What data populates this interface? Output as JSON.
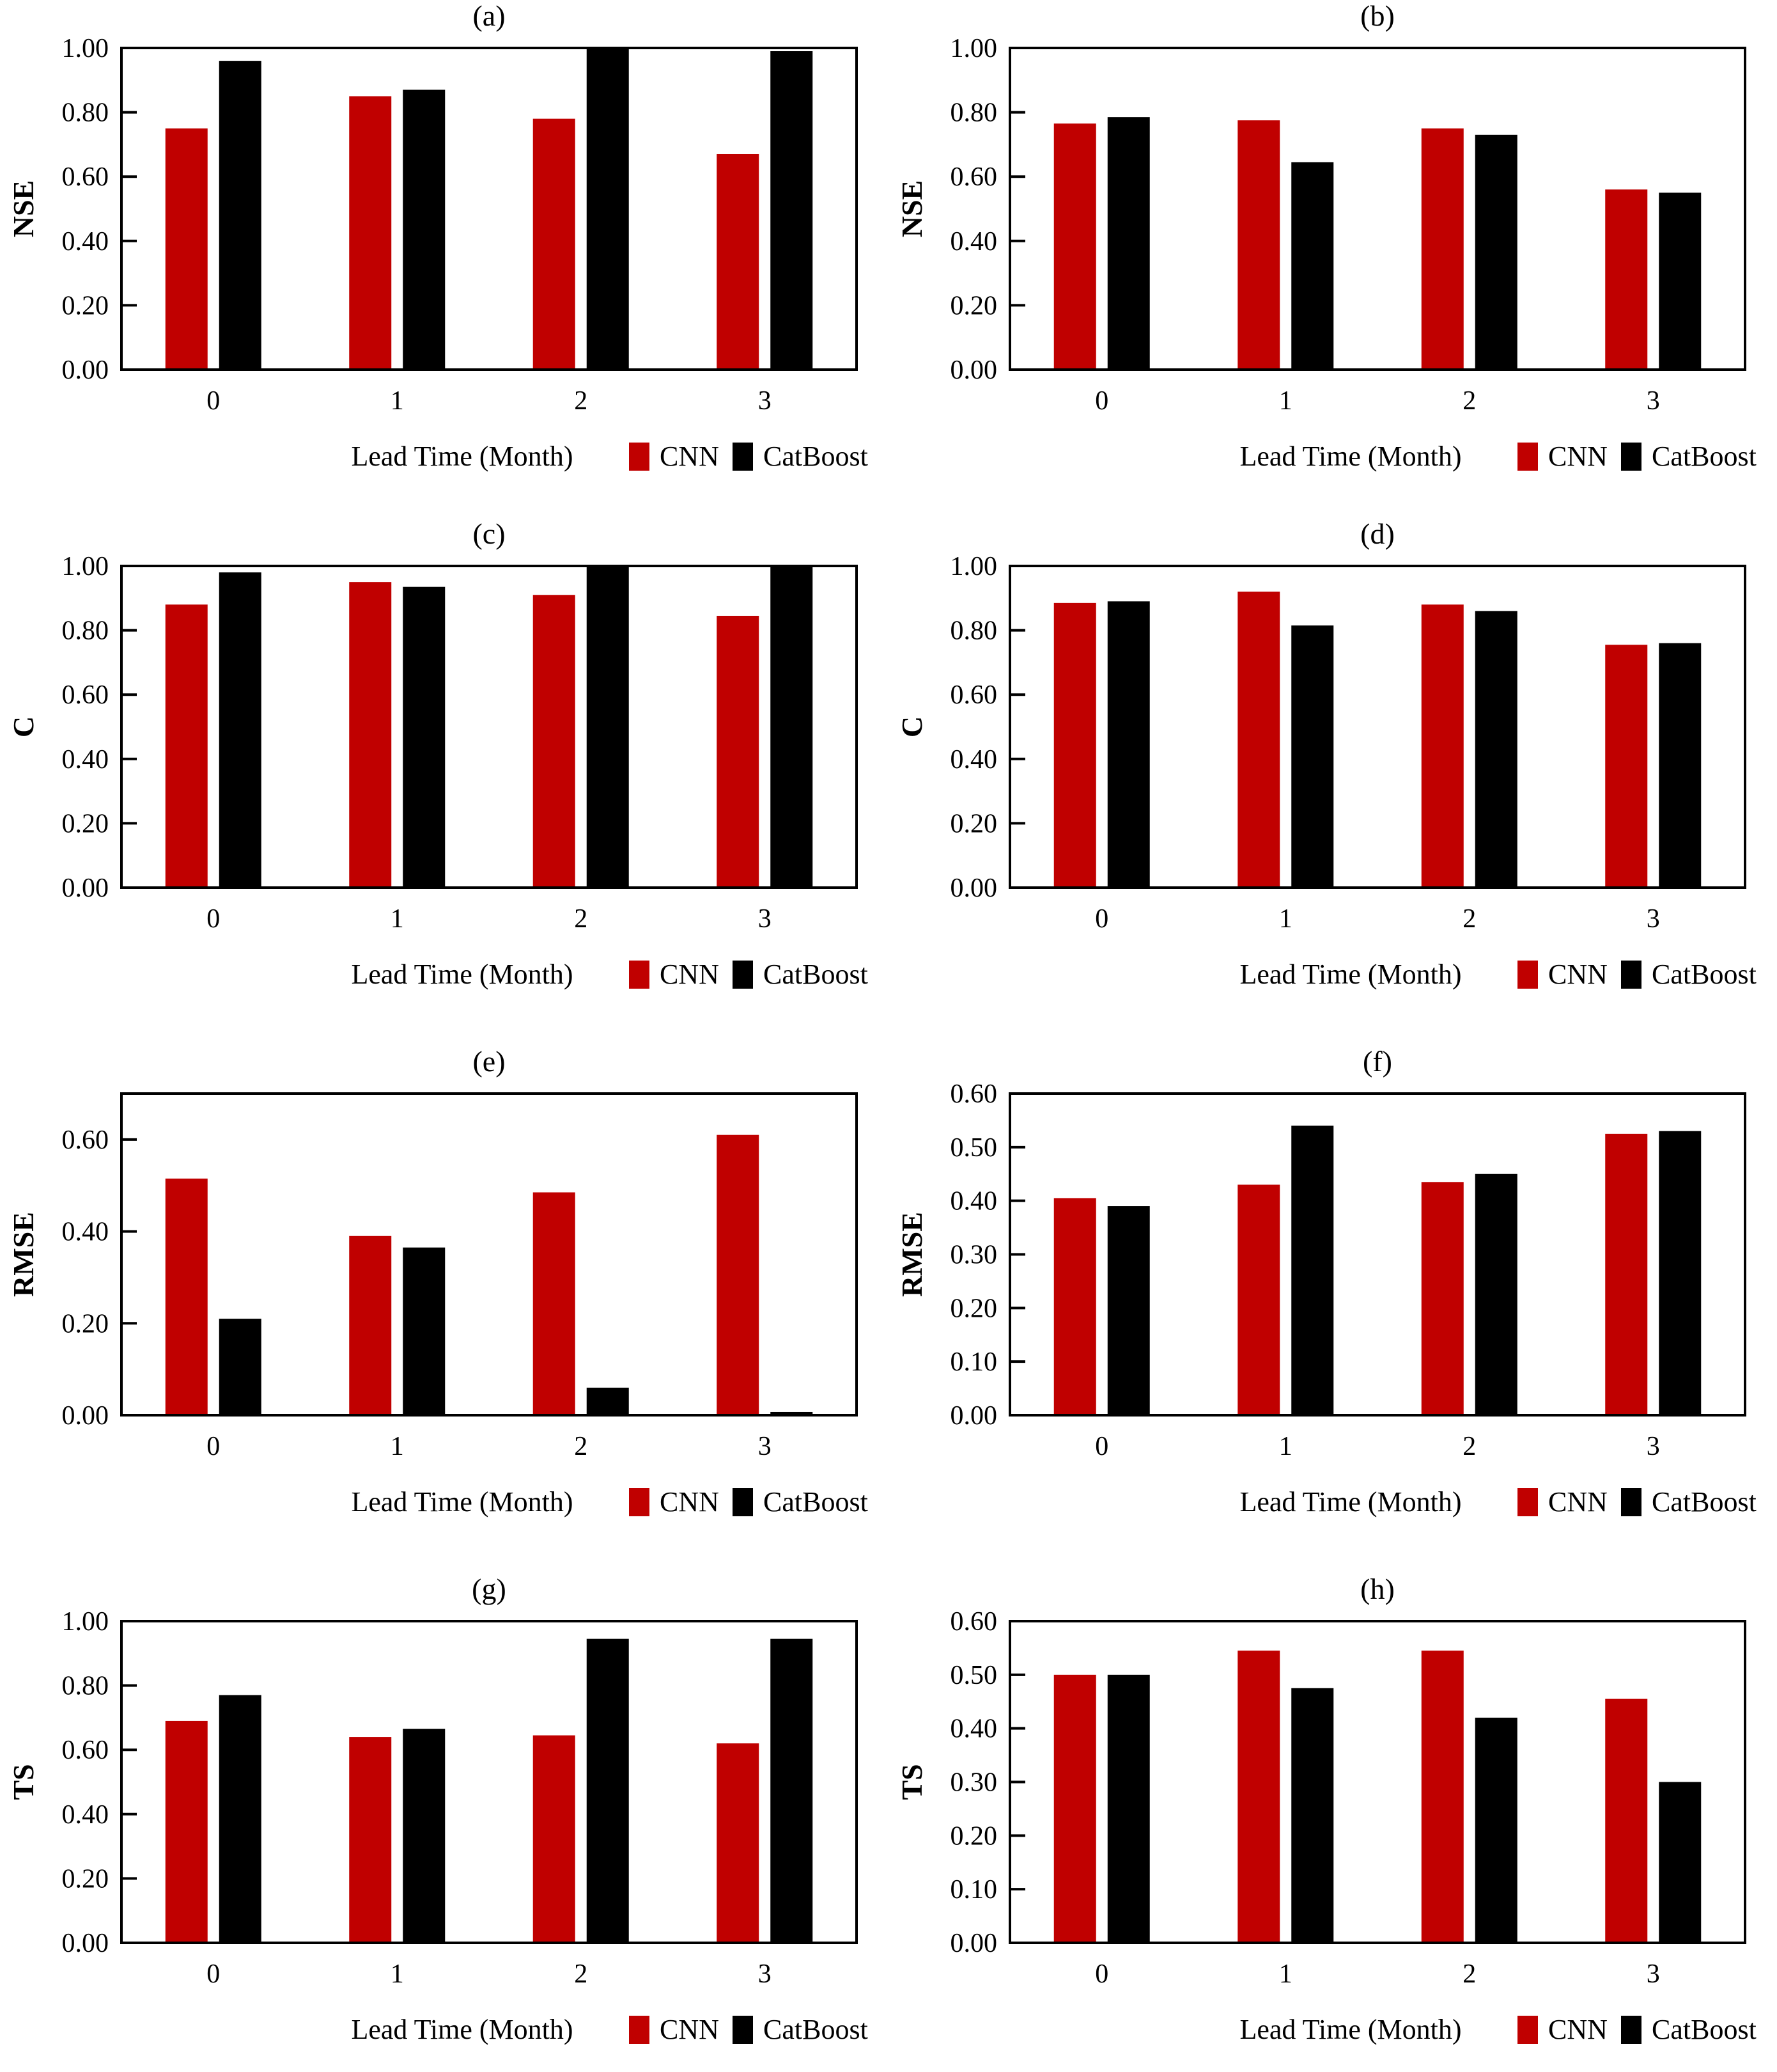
{
  "page": {
    "background": "#ffffff",
    "description_colors": {
      "cnn_red": "#c00000",
      "catboost_black": "#000000",
      "axis": "#000000"
    }
  },
  "shared": {
    "xlabel": "Lead Time (Month)",
    "legend": [
      "CNN",
      "CatBoost"
    ]
  },
  "chart_data": [
    {
      "type": "bar",
      "title": "(a)",
      "ylabel": "NSE",
      "xlabel": "Lead Time (Month)",
      "categories": [
        "0",
        "1",
        "2",
        "3"
      ],
      "series": [
        {
          "name": "CNN",
          "color": "#c00000",
          "values": [
            0.75,
            0.85,
            0.78,
            0.67
          ]
        },
        {
          "name": "CatBoost",
          "color": "#000000",
          "values": [
            0.96,
            0.87,
            1.0,
            0.99
          ]
        }
      ],
      "ylim": [
        0,
        1.0
      ],
      "axis_top": 1.0,
      "yticks": {
        "values": [
          0,
          0.2,
          0.4,
          0.6,
          0.8,
          1.0
        ],
        "labels": [
          "0.00",
          "0.20",
          "0.40",
          "0.60",
          "0.80",
          "1.00"
        ]
      },
      "grid": false,
      "legend_position": "bottom-right"
    },
    {
      "type": "bar",
      "title": "(b)",
      "ylabel": "NSE",
      "xlabel": "Lead Time (Month)",
      "categories": [
        "0",
        "1",
        "2",
        "3"
      ],
      "series": [
        {
          "name": "CNN",
          "color": "#c00000",
          "values": [
            0.765,
            0.775,
            0.75,
            0.56
          ]
        },
        {
          "name": "CatBoost",
          "color": "#000000",
          "values": [
            0.785,
            0.645,
            0.73,
            0.55
          ]
        }
      ],
      "ylim": [
        0,
        1.0
      ],
      "axis_top": 1.0,
      "yticks": {
        "values": [
          0,
          0.2,
          0.4,
          0.6,
          0.8,
          1.0
        ],
        "labels": [
          "0.00",
          "0.20",
          "0.40",
          "0.60",
          "0.80",
          "1.00"
        ]
      },
      "grid": false,
      "legend_position": "bottom-right"
    },
    {
      "type": "bar",
      "title": "(c)",
      "ylabel": "C",
      "xlabel": "Lead Time (Month)",
      "categories": [
        "0",
        "1",
        "2",
        "3"
      ],
      "series": [
        {
          "name": "CNN",
          "color": "#c00000",
          "values": [
            0.88,
            0.95,
            0.91,
            0.845
          ]
        },
        {
          "name": "CatBoost",
          "color": "#000000",
          "values": [
            0.98,
            0.935,
            1.0,
            1.0
          ]
        }
      ],
      "ylim": [
        0,
        1.0
      ],
      "axis_top": 1.0,
      "yticks": {
        "values": [
          0,
          0.2,
          0.4,
          0.6,
          0.8,
          1.0
        ],
        "labels": [
          "0.00",
          "0.20",
          "0.40",
          "0.60",
          "0.80",
          "1.00"
        ]
      },
      "grid": false,
      "legend_position": "bottom-right"
    },
    {
      "type": "bar",
      "title": "(d)",
      "ylabel": "C",
      "xlabel": "Lead Time (Month)",
      "categories": [
        "0",
        "1",
        "2",
        "3"
      ],
      "series": [
        {
          "name": "CNN",
          "color": "#c00000",
          "values": [
            0.885,
            0.92,
            0.88,
            0.755
          ]
        },
        {
          "name": "CatBoost",
          "color": "#000000",
          "values": [
            0.89,
            0.815,
            0.86,
            0.76
          ]
        }
      ],
      "ylim": [
        0,
        1.0
      ],
      "axis_top": 1.0,
      "yticks": {
        "values": [
          0,
          0.2,
          0.4,
          0.6,
          0.8,
          1.0
        ],
        "labels": [
          "0.00",
          "0.20",
          "0.40",
          "0.60",
          "0.80",
          "1.00"
        ]
      },
      "grid": false,
      "legend_position": "bottom-right"
    },
    {
      "type": "bar",
      "title": "(e)",
      "ylabel": "RMSE",
      "xlabel": "Lead Time (Month)",
      "categories": [
        "0",
        "1",
        "2",
        "3"
      ],
      "series": [
        {
          "name": "CNN",
          "color": "#c00000",
          "values": [
            0.515,
            0.39,
            0.485,
            0.61
          ]
        },
        {
          "name": "CatBoost",
          "color": "#000000",
          "values": [
            0.21,
            0.365,
            0.06,
            0.007
          ]
        }
      ],
      "ylim": [
        0,
        0.7
      ],
      "axis_top": 0.7,
      "yticks": {
        "values": [
          0,
          0.2,
          0.4,
          0.6
        ],
        "labels": [
          "0.00",
          "0.20",
          "0.40",
          "0.60"
        ]
      },
      "grid": false,
      "legend_position": "bottom-right"
    },
    {
      "type": "bar",
      "title": "(f)",
      "ylabel": "RMSE",
      "xlabel": "Lead Time (Month)",
      "categories": [
        "0",
        "1",
        "2",
        "3"
      ],
      "series": [
        {
          "name": "CNN",
          "color": "#c00000",
          "values": [
            0.405,
            0.43,
            0.435,
            0.525
          ]
        },
        {
          "name": "CatBoost",
          "color": "#000000",
          "values": [
            0.39,
            0.54,
            0.45,
            0.53
          ]
        }
      ],
      "ylim": [
        0,
        0.6
      ],
      "axis_top": 0.6,
      "yticks": {
        "values": [
          0,
          0.1,
          0.2,
          0.3,
          0.4,
          0.5,
          0.6
        ],
        "labels": [
          "0.00",
          "0.10",
          "0.20",
          "0.30",
          "0.40",
          "0.50",
          "0.60"
        ]
      },
      "grid": false,
      "legend_position": "bottom-right"
    },
    {
      "type": "bar",
      "title": "(g)",
      "ylabel": "TS",
      "xlabel": "Lead Time (Month)",
      "categories": [
        "0",
        "1",
        "2",
        "3"
      ],
      "series": [
        {
          "name": "CNN",
          "color": "#c00000",
          "values": [
            0.69,
            0.64,
            0.645,
            0.62
          ]
        },
        {
          "name": "CatBoost",
          "color": "#000000",
          "values": [
            0.77,
            0.665,
            0.945,
            0.945
          ]
        }
      ],
      "ylim": [
        0,
        1.0
      ],
      "axis_top": 1.0,
      "yticks": {
        "values": [
          0,
          0.2,
          0.4,
          0.6,
          0.8,
          1.0
        ],
        "labels": [
          "0.00",
          "0.20",
          "0.40",
          "0.60",
          "0.80",
          "1.00"
        ]
      },
      "grid": false,
      "legend_position": "bottom-right"
    },
    {
      "type": "bar",
      "title": "(h)",
      "ylabel": "TS",
      "xlabel": "Lead Time (Month)",
      "categories": [
        "0",
        "1",
        "2",
        "3"
      ],
      "series": [
        {
          "name": "CNN",
          "color": "#c00000",
          "values": [
            0.5,
            0.545,
            0.545,
            0.455
          ]
        },
        {
          "name": "CatBoost",
          "color": "#000000",
          "values": [
            0.5,
            0.475,
            0.42,
            0.3
          ]
        }
      ],
      "ylim": [
        0,
        0.6
      ],
      "axis_top": 0.6,
      "yticks": {
        "values": [
          0,
          0.1,
          0.2,
          0.3,
          0.4,
          0.5,
          0.6
        ],
        "labels": [
          "0.00",
          "0.10",
          "0.20",
          "0.30",
          "0.40",
          "0.50",
          "0.60"
        ]
      },
      "grid": false,
      "legend_position": "bottom-right"
    }
  ]
}
